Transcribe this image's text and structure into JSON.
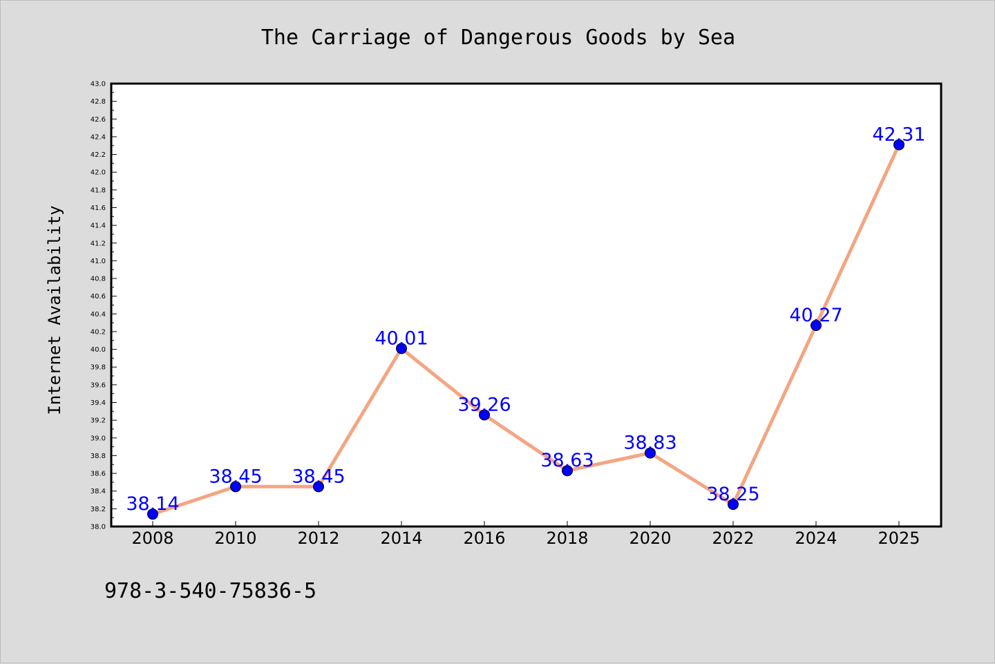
{
  "chart_data": {
    "type": "line",
    "title": "The Carriage of Dangerous Goods by Sea",
    "xlabel": "",
    "ylabel": "Internet Availability",
    "categories": [
      "2008",
      "2010",
      "2012",
      "2014",
      "2016",
      "2018",
      "2020",
      "2022",
      "2024",
      "2025"
    ],
    "series": [
      {
        "values": [
          38.14,
          38.45,
          38.45,
          40.01,
          39.26,
          38.63,
          38.83,
          38.25,
          40.27,
          42.31
        ],
        "labels": [
          "38.14",
          "38.45",
          "38.45",
          "40.01",
          "39.26",
          "38.63",
          "38.83",
          "38.25",
          "40.27",
          "42.31"
        ]
      }
    ],
    "ylim": [
      38.0,
      43.0
    ],
    "yticks": [
      "38.0",
      "38.2",
      "38.4",
      "38.6",
      "38.8",
      "39.0",
      "39.2",
      "39.4",
      "39.6",
      "39.8",
      "40.0",
      "40.2",
      "40.4",
      "40.6",
      "40.8",
      "41.0",
      "41.2",
      "41.4",
      "41.6",
      "41.8",
      "42.0",
      "42.2",
      "42.4",
      "42.6",
      "42.8",
      "43.0"
    ],
    "grid": false,
    "legend": "none",
    "annotation": "978-3-540-75836-5"
  },
  "colors": {
    "line": "#f4a582",
    "marker": "#0000ff",
    "data_label": "#0000ff",
    "plot_background": "#ffffff",
    "figure_background": "#dcdcdc"
  }
}
